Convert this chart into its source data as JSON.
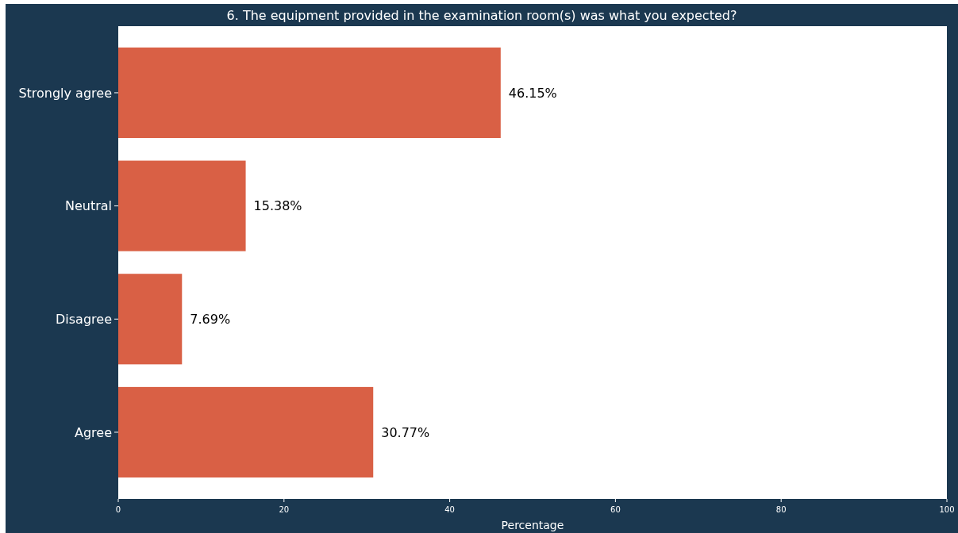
{
  "chart_data": {
    "type": "bar",
    "orientation": "horizontal",
    "title": "6. The equipment provided in the examination room(s) was what you expected?",
    "xlabel": "Percentage",
    "categories": [
      "Strongly agree",
      "Neutral",
      "Disagree",
      "Agree"
    ],
    "values": [
      46.15,
      15.38,
      7.69,
      30.77
    ],
    "value_labels": [
      "46.15%",
      "15.38%",
      "7.69%",
      "30.77%"
    ],
    "color": "#d96045",
    "xlim": [
      0,
      100
    ],
    "xticks": [
      0,
      20,
      40,
      60,
      80,
      100
    ],
    "grid": false
  }
}
